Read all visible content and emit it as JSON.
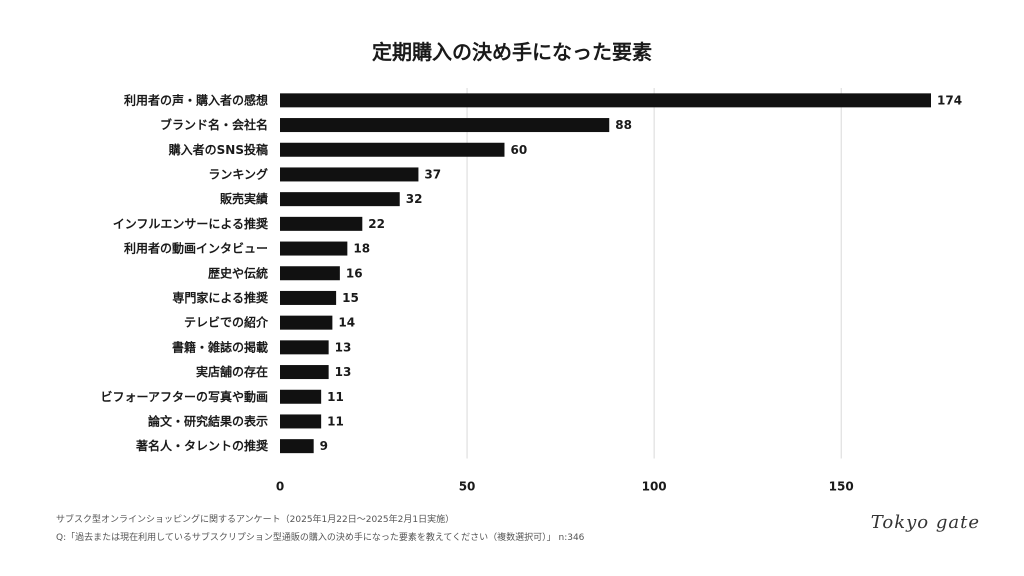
{
  "chart_data": {
    "type": "bar",
    "orientation": "horizontal",
    "title": "定期購入の決め手になった要素",
    "categories": [
      "利用者の声・購入者の感想",
      "ブランド名・会社名",
      "購入者のSNS投稿",
      "ランキング",
      "販売実績",
      "インフルエンサーによる推奨",
      "利用者の動画インタビュー",
      "歴史や伝統",
      "専門家による推奨",
      "テレビでの紹介",
      "書籍・雑誌の掲載",
      "実店舗の存在",
      "ビフォーアフターの写真や動画",
      "論文・研究結果の表示",
      "著名人・タレントの推奨"
    ],
    "values": [
      174,
      88,
      60,
      37,
      32,
      22,
      18,
      16,
      15,
      14,
      13,
      13,
      11,
      11,
      9
    ],
    "xticks": [
      0,
      50,
      100,
      150
    ],
    "xlim": [
      0,
      174
    ],
    "xlabel": "",
    "ylabel": "",
    "grid": true,
    "bar_color": "#111111"
  },
  "footnotes": {
    "survey": "サブスク型オンラインショッピングに関するアンケート（2025年1月22日〜2025年2月1日実施）",
    "question": "Q:「過去または現在利用しているサブスクリプション型通販の購入の決め手になった要素を教えてください（複数選択可）」 n:346"
  },
  "logo_text": "Tokyo gate"
}
